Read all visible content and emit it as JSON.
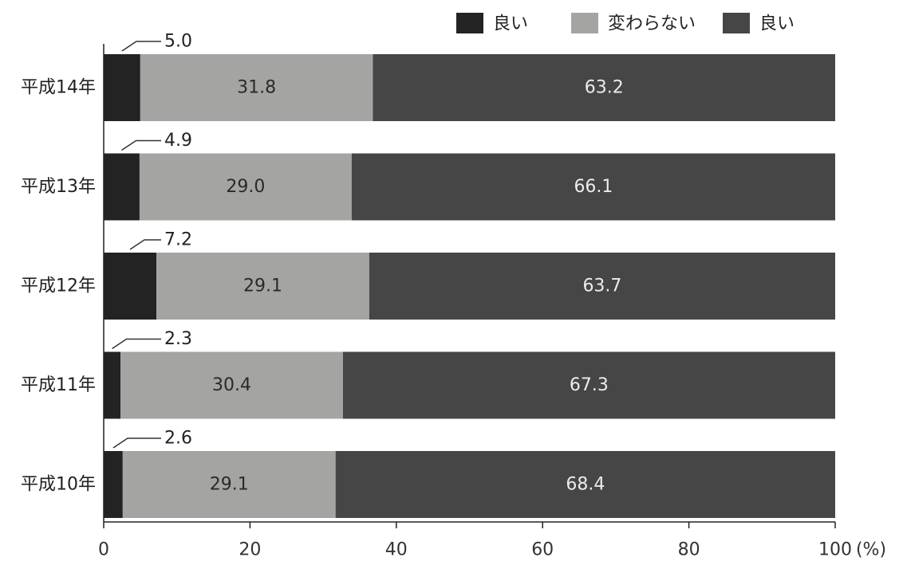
{
  "chart_data": {
    "type": "bar",
    "orientation": "horizontal",
    "stacked": true,
    "categories": [
      "平成14年",
      "平成13年",
      "平成12年",
      "平成11年",
      "平成10年"
    ],
    "series": [
      {
        "name": "良い",
        "values": [
          5.0,
          4.9,
          7.2,
          2.3,
          2.6
        ],
        "color": "#232323",
        "label_position": "callout"
      },
      {
        "name": "変わらない",
        "values": [
          31.8,
          29.0,
          29.1,
          30.4,
          29.1
        ],
        "color": "#a4a4a2",
        "text_color": "#2a2a2a"
      },
      {
        "name": "良い",
        "values": [
          63.2,
          66.1,
          63.7,
          67.3,
          68.4
        ],
        "color": "#464646",
        "text_color": "#ececec"
      }
    ],
    "value_labels": [
      [
        "5.0",
        "4.9",
        "7.2",
        "2.3",
        "2.6"
      ],
      [
        "31.8",
        "29.0",
        "29.1",
        "30.4",
        "29.1"
      ],
      [
        "63.2",
        "66.1",
        "63.7",
        "67.3",
        "68.4"
      ]
    ],
    "x_ticks": [
      "0",
      "20",
      "40",
      "60",
      "80",
      "100"
    ],
    "x_unit": "(%)",
    "xlim": [
      0,
      100
    ],
    "grid": false,
    "legend_position": "top-right"
  }
}
